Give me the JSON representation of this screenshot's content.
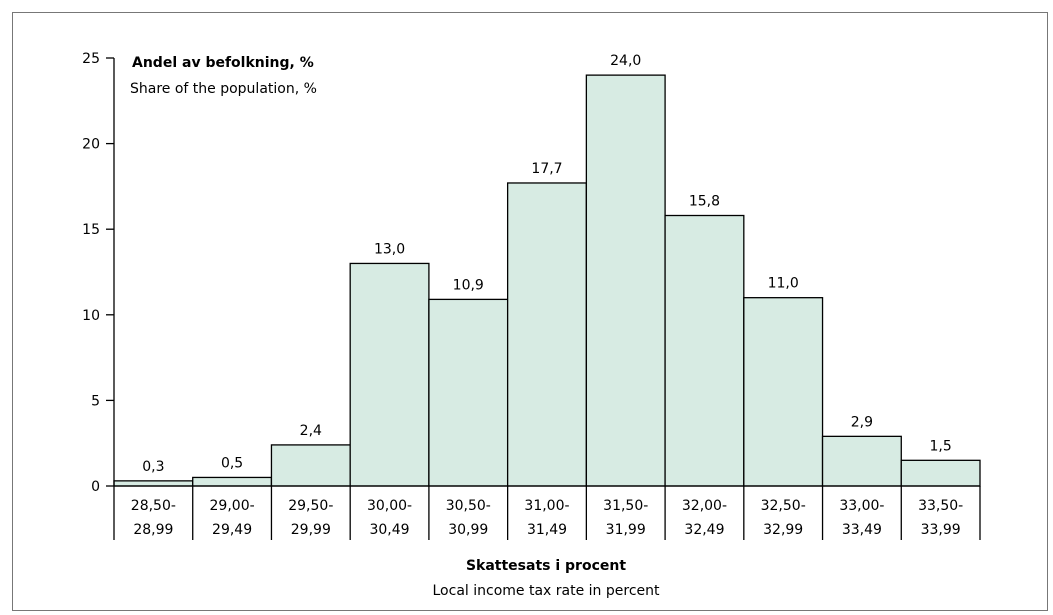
{
  "chart_data": {
    "type": "bar",
    "categories": [
      [
        "28,50-",
        "28,99"
      ],
      [
        "29,00-",
        "29,49"
      ],
      [
        "29,50-",
        "29,99"
      ],
      [
        "30,00-",
        "30,49"
      ],
      [
        "30,50-",
        "30,99"
      ],
      [
        "31,00-",
        "31,49"
      ],
      [
        "31,50-",
        "31,99"
      ],
      [
        "32,00-",
        "32,49"
      ],
      [
        "32,50-",
        "32,99"
      ],
      [
        "33,00-",
        "33,49"
      ],
      [
        "33,50-",
        "33,99"
      ]
    ],
    "values": [
      0.3,
      0.5,
      2.4,
      13.0,
      10.9,
      17.7,
      24.0,
      15.8,
      11.0,
      2.9,
      1.5
    ],
    "data_labels": [
      "0,3",
      "0,5",
      "2,4",
      "13,0",
      "10,9",
      "17,7",
      "24,0",
      "15,8",
      "11,0",
      "2,9",
      "1,5"
    ],
    "ylabel": "Andel av befolkning, %",
    "ylabel_sub": "Share of the population, %",
    "xlabel": "Skattesats i procent",
    "xlabel_sub": "Local income tax rate in percent",
    "ylim": [
      0,
      25
    ],
    "yticks": [
      0,
      5,
      10,
      15,
      20,
      25
    ],
    "grid": false,
    "bar_color": "#d7ebe3",
    "bar_edge_color": "#000000",
    "frame_color": "#777777"
  }
}
